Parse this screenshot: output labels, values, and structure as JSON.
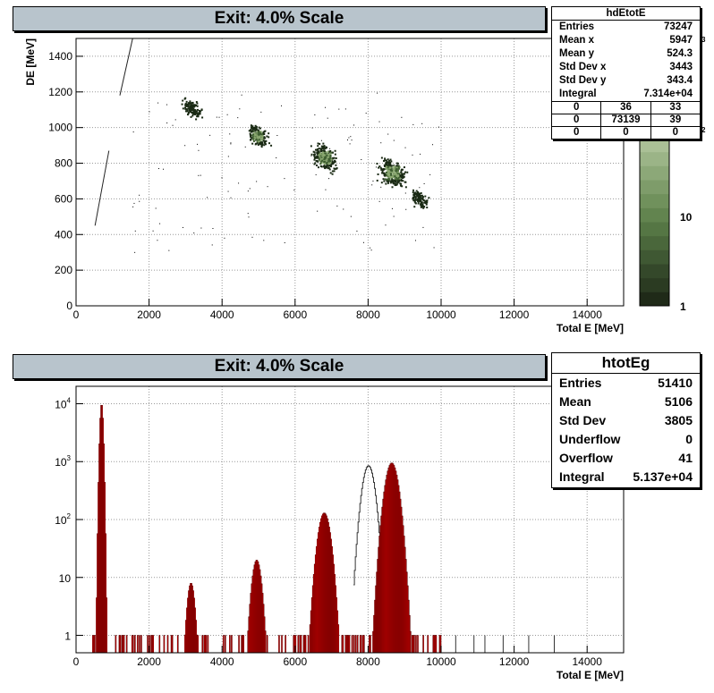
{
  "top": {
    "title": "Exit: 4.0% Scale",
    "stats": {
      "name": "hdEtotE",
      "rows": [
        {
          "k": "Entries",
          "v": "73247"
        },
        {
          "k": "Mean x",
          "v": "5947"
        },
        {
          "k": "Mean y",
          "v": "524.3"
        },
        {
          "k": "Std Dev x",
          "v": "3443"
        },
        {
          "k": "Std Dev y",
          "v": "343.4"
        },
        {
          "k": "Integral",
          "v": "7.314e+04"
        }
      ],
      "grid": [
        [
          "0",
          "36",
          "33"
        ],
        [
          "0",
          "73139",
          "39"
        ],
        [
          "0",
          "0",
          "0"
        ]
      ]
    },
    "palette": {
      "labels": [
        "10",
        "1"
      ],
      "exp_labels": [
        "3",
        "2"
      ]
    }
  },
  "bottom": {
    "title": "Exit: 4.0% Scale",
    "stats": {
      "name": "htotEg",
      "rows": [
        {
          "k": "Entries",
          "v": "51410"
        },
        {
          "k": "Mean",
          "v": "5106"
        },
        {
          "k": "Std Dev",
          "v": "3805"
        },
        {
          "k": "Underflow",
          "v": "0"
        },
        {
          "k": "Overflow",
          "v": "41"
        },
        {
          "k": "Integral",
          "v": "5.137e+04"
        }
      ]
    }
  },
  "colors": {
    "fill": "#ff0000",
    "edge": "#5a0000",
    "frame": "#b8c4cc",
    "cluster": "#4e7a3c"
  },
  "chart_data": [
    {
      "type": "heatmap",
      "name": "hdEtotE",
      "title": "Exit: 4.0% Scale",
      "xlabel": "Total E [MeV]",
      "ylabel": "DE [MeV]",
      "xlim": [
        0,
        15000
      ],
      "ylim": [
        0,
        1500
      ],
      "xticks": [
        "0",
        "2000",
        "4000",
        "6000",
        "8000",
        "10000",
        "12000",
        "14000"
      ],
      "yticks": [
        "0",
        "200",
        "400",
        "600",
        "800",
        "1000",
        "1200",
        "1400"
      ],
      "grid": true,
      "z_scale": "log",
      "clusters": [
        {
          "x": 3150,
          "y": 1115,
          "level": 0.25
        },
        {
          "x": 4950,
          "y": 955,
          "level": 0.5
        },
        {
          "x": 6800,
          "y": 835,
          "level": 0.8
        },
        {
          "x": 8650,
          "y": 750,
          "level": 1.0
        },
        {
          "x": 9400,
          "y": 600,
          "level": 0.15
        }
      ],
      "lines": [
        {
          "x1": 520,
          "y1": 450,
          "x2": 900,
          "y2": 870
        },
        {
          "x1": 1200,
          "y1": 1180,
          "x2": 1550,
          "y2": 1500
        }
      ]
    },
    {
      "type": "area",
      "name": "htotEg",
      "title": "Exit: 4.0% Scale",
      "xlabel": "Total E [MeV]",
      "ylabel": "",
      "xlim": [
        0,
        15000
      ],
      "ylim": [
        0.5,
        20000
      ],
      "y_scale": "log",
      "xticks": [
        "0",
        "2000",
        "4000",
        "6000",
        "8000",
        "10000",
        "12000",
        "14000"
      ],
      "yticks": [
        "1",
        "10",
        "10^2",
        "10^3",
        "10^4"
      ],
      "grid": true,
      "peaks": [
        {
          "center": 700,
          "height": 10000,
          "width": 35
        },
        {
          "center": 3150,
          "height": 8,
          "width": 80
        },
        {
          "center": 4950,
          "height": 20,
          "width": 100
        },
        {
          "center": 6800,
          "height": 130,
          "width": 130
        },
        {
          "center": 8650,
          "height": 950,
          "width": 140
        }
      ],
      "unfilled_peak": {
        "center": 8000,
        "height": 850,
        "width": 130
      }
    }
  ]
}
